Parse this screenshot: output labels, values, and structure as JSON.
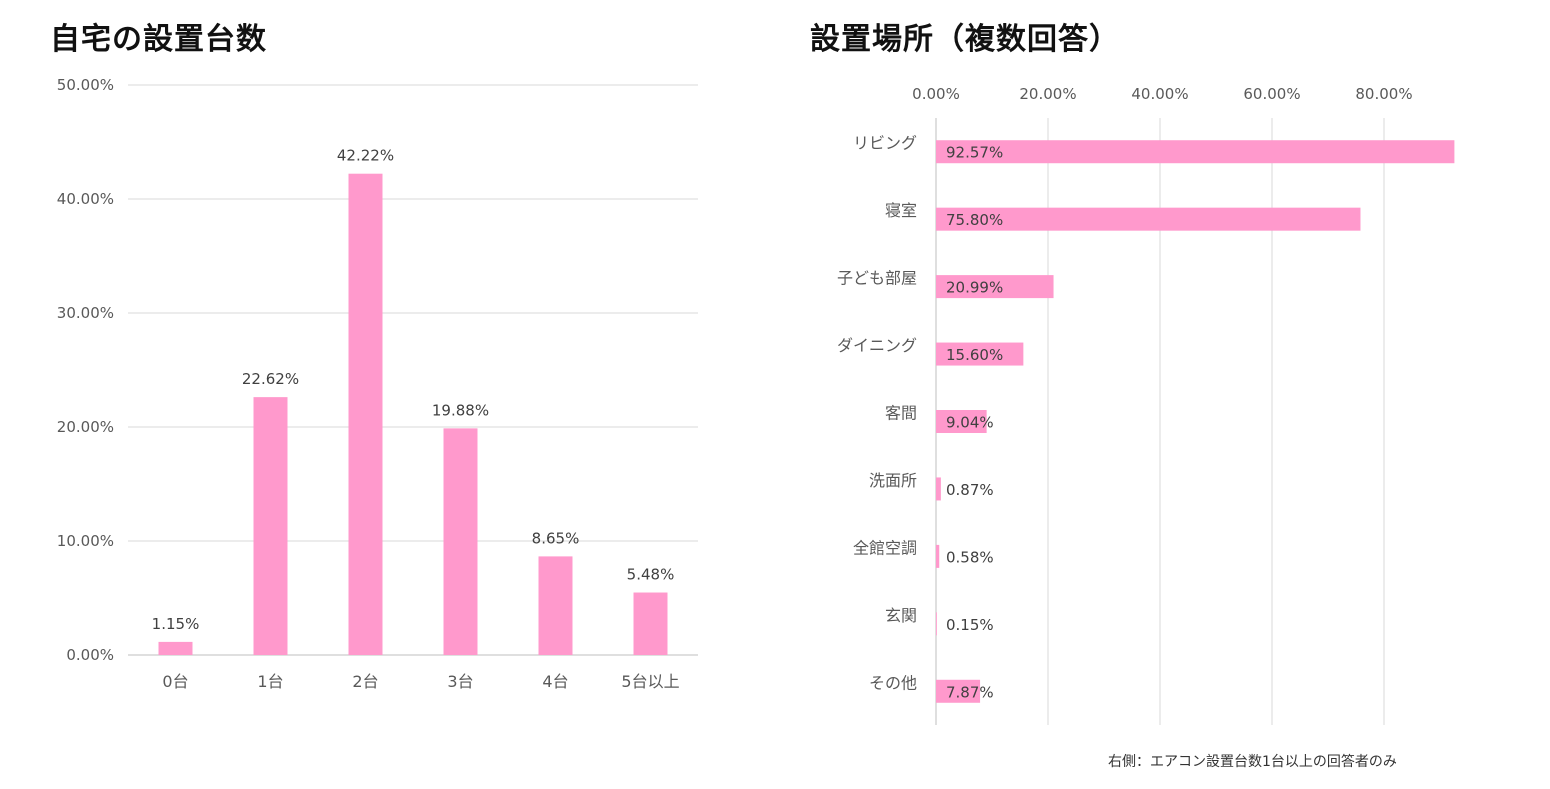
{
  "chart_data": [
    {
      "type": "bar",
      "title": "自宅の設置台数",
      "categories": [
        "0台",
        "1台",
        "2台",
        "3台",
        "4台",
        "5台以上"
      ],
      "values": [
        1.15,
        22.62,
        42.22,
        19.88,
        8.65,
        5.48
      ],
      "value_labels": [
        "1.15%",
        "22.62%",
        "42.22%",
        "19.88%",
        "8.65%",
        "5.48%"
      ],
      "yticks": [
        "0.00%",
        "10.00%",
        "20.00%",
        "30.00%",
        "40.00%",
        "50.00%"
      ],
      "ylim": [
        0,
        50
      ],
      "grid": true,
      "bar_color": "#FF99CC"
    },
    {
      "type": "bar",
      "orientation": "horizontal",
      "title": "設置場所（複数回答）",
      "categories": [
        "リビング",
        "寝室",
        "子ども部屋",
        "ダイニング",
        "客間",
        "洗面所",
        "全館空調",
        "玄関",
        "その他"
      ],
      "values": [
        92.57,
        75.8,
        20.99,
        15.6,
        9.04,
        0.87,
        0.58,
        0.15,
        7.87
      ],
      "value_labels": [
        "92.57%",
        "75.80%",
        "20.99%",
        "15.60%",
        "9.04%",
        "0.87%",
        "0.58%",
        "0.15%",
        "7.87%"
      ],
      "xticks": [
        "0.00%",
        "20.00%",
        "40.00%",
        "60.00%",
        "80.00%"
      ],
      "xlim": [
        0,
        100
      ],
      "grid": true,
      "axis_position": "top",
      "bar_color": "#FF99CC"
    }
  ],
  "footnote": "右側：エアコン設置台数1台以上の回答者のみ"
}
